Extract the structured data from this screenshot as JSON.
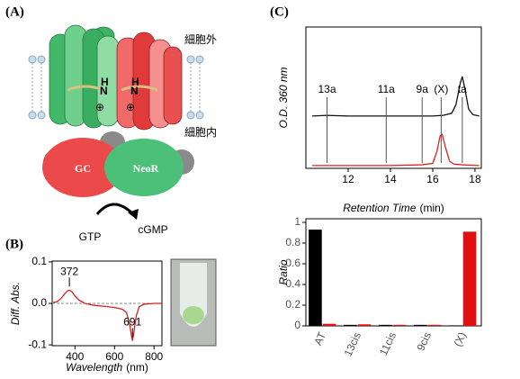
{
  "panel_labels": [
    "(A)",
    "(B)",
    "(C)"
  ],
  "diagram": {
    "outside": "細胞外",
    "inside": "細胞内",
    "gc": "GC",
    "neor": "NeoR",
    "substrate": "GTP",
    "product": "cGMP",
    "h": "H",
    "n": "N",
    "plus": "⊕"
  },
  "chart_data": [
    {
      "type": "line",
      "ylabel": "Diff. Abs.",
      "xlabel": "Wavelength",
      "xlabel_unit": "(nm)",
      "x": [
        290,
        310,
        330,
        350,
        362,
        372,
        385,
        400,
        420,
        450,
        500,
        550,
        600,
        640,
        660,
        675,
        685,
        691,
        698,
        710,
        725,
        750,
        800,
        840
      ],
      "series": [
        {
          "color": "#d42020",
          "values": [
            0.002,
            0.004,
            0.012,
            0.024,
            0.03,
            0.032,
            0.028,
            0.018,
            0.008,
            0.0,
            -0.005,
            -0.007,
            -0.01,
            -0.014,
            -0.022,
            -0.045,
            -0.075,
            -0.09,
            -0.07,
            -0.03,
            -0.008,
            -0.002,
            0,
            0
          ]
        }
      ],
      "annotations": [
        372,
        691
      ],
      "xlim": [
        285,
        840
      ],
      "xticks": [
        400,
        600,
        800
      ],
      "ylim": [
        -0.102,
        0.102
      ],
      "yticks": [
        0.1,
        {
          "value": 0,
          "label": "0.0"
        },
        -0.1
      ]
    },
    {
      "type": "line",
      "ylabel": "O.D. 360 nm",
      "xlabel": "Retention Time",
      "xlabel_unit": "(min)",
      "series": [
        {
          "color": "#111111",
          "x": [
            10.3,
            11,
            12,
            13,
            14,
            15,
            16,
            16.5,
            16.9,
            17.1,
            17.3,
            17.4,
            17.5,
            17.7,
            17.9,
            18.2
          ],
          "values": [
            0.37,
            0.375,
            0.37,
            0.37,
            0.37,
            0.37,
            0.37,
            0.375,
            0.39,
            0.45,
            0.6,
            0.65,
            0.58,
            0.42,
            0.38,
            0.37
          ]
        },
        {
          "color": "#e02020",
          "x": [
            10.3,
            12,
            14,
            15.5,
            16,
            16.2,
            16.35,
            16.45,
            16.6,
            16.8,
            17,
            17.4,
            18.2
          ],
          "values": [
            0.02,
            0.02,
            0.02,
            0.025,
            0.035,
            0.12,
            0.23,
            0.24,
            0.15,
            0.05,
            0.03,
            0.025,
            0.02
          ]
        }
      ],
      "markers": [
        {
          "x": 11,
          "label": "13a"
        },
        {
          "x": 13.8,
          "label": "11a"
        },
        {
          "x": 15.5,
          "label": "9a"
        },
        {
          "x": 16.4,
          "label": "(X)"
        },
        {
          "x": 17.4,
          "label": "ta"
        }
      ],
      "xlim": [
        10,
        18.3
      ],
      "xticks": [
        12,
        14,
        16,
        18
      ],
      "ylim": [
        0,
        1
      ]
    },
    {
      "type": "bar",
      "ylabel": "Ratio",
      "categories": [
        "AT",
        "13cis",
        "11cis",
        "9cis",
        "(X)"
      ],
      "series": [
        {
          "color": "#000000",
          "values": [
            0.93,
            0.01,
            0.01,
            0.01,
            0.005
          ]
        },
        {
          "color": "#e01010",
          "values": [
            0.02,
            0.015,
            0.01,
            0.01,
            0.91
          ]
        }
      ],
      "ylim": [
        0,
        1.035
      ],
      "yticks": [
        0,
        0.2,
        0.4,
        0.6,
        0.8,
        1
      ]
    }
  ]
}
